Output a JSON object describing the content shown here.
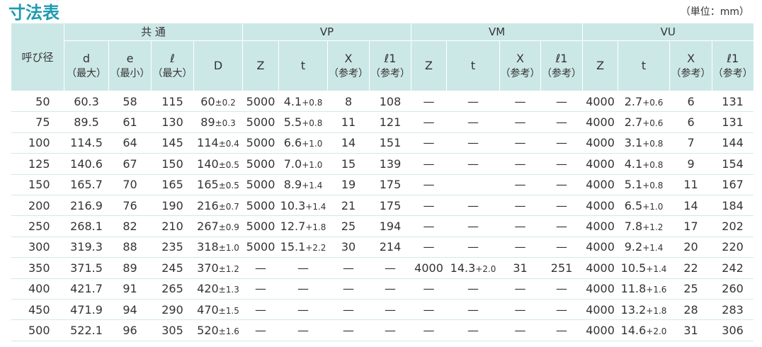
{
  "header": {
    "title": "寸法表",
    "unit": "（単位：mm）"
  },
  "table": {
    "group_headers": [
      "呼び径",
      "共 通",
      "VP",
      "VM",
      "VU"
    ],
    "column_headers": [
      [
        "d",
        "（最大）"
      ],
      [
        "e",
        "（最小）"
      ],
      [
        "ℓ",
        "（最大）"
      ],
      "D",
      "Z",
      "t",
      [
        "X",
        "（参考）"
      ],
      [
        "ℓ1",
        "（参考）"
      ],
      "Z",
      "t",
      [
        "X",
        "（参考）"
      ],
      [
        "ℓ1",
        "（参考）"
      ],
      "Z",
      "t",
      [
        "X",
        "（参考）"
      ],
      [
        "ℓ1",
        "（参考）"
      ]
    ],
    "rows": [
      [
        "50",
        "60.3",
        "58",
        "115",
        [
          "60",
          "±0.2"
        ],
        "5000",
        [
          "4.1",
          "+0.8"
        ],
        "8",
        "108",
        "—",
        "—",
        "—",
        "—",
        "4000",
        [
          "2.7",
          "+0.6"
        ],
        "6",
        "131"
      ],
      [
        "75",
        "89.5",
        "61",
        "130",
        [
          "89",
          "±0.3"
        ],
        "5000",
        [
          "5.5",
          "+0.8"
        ],
        "11",
        "121",
        "—",
        "—",
        "—",
        "—",
        "4000",
        [
          "2.7",
          "+0.6"
        ],
        "6",
        "131"
      ],
      [
        "100",
        "114.5",
        "64",
        "145",
        [
          "114",
          "±0.4"
        ],
        "5000",
        [
          "6.6",
          "+1.0"
        ],
        "14",
        "151",
        "—",
        "—",
        "—",
        "—",
        "4000",
        [
          "3.1",
          "+0.8"
        ],
        "7",
        "144"
      ],
      [
        "125",
        "140.6",
        "67",
        "150",
        [
          "140",
          "±0.5"
        ],
        "5000",
        [
          "7.0",
          "+1.0"
        ],
        "15",
        "139",
        "—",
        "—",
        "—",
        "—",
        "4000",
        [
          "4.1",
          "+0.8"
        ],
        "9",
        "154"
      ],
      [
        "150",
        "165.7",
        "70",
        "165",
        [
          "165",
          "±0.5"
        ],
        "5000",
        [
          "8.9",
          "+1.4"
        ],
        "19",
        "175",
        "—",
        null,
        "—",
        "—",
        "4000",
        [
          "5.1",
          "+0.8"
        ],
        "11",
        "167"
      ],
      [
        "200",
        "216.9",
        "76",
        "190",
        [
          "216",
          "±0.7"
        ],
        "5000",
        [
          "10.3",
          "+1.4"
        ],
        "21",
        "175",
        "—",
        "—",
        "—",
        "—",
        "4000",
        [
          "6.5",
          "+1.0"
        ],
        "14",
        "184"
      ],
      [
        "250",
        "268.1",
        "82",
        "210",
        [
          "267",
          "±0.9"
        ],
        "5000",
        [
          "12.7",
          "+1.8"
        ],
        "25",
        "194",
        "—",
        "—",
        "—",
        "—",
        "4000",
        [
          "7.8",
          "+1.2"
        ],
        "17",
        "202"
      ],
      [
        "300",
        "319.3",
        "88",
        "235",
        [
          "318",
          "±1.0"
        ],
        "5000",
        [
          "15.1",
          "+2.2"
        ],
        "30",
        "214",
        "—",
        "—",
        "—",
        "—",
        "4000",
        [
          "9.2",
          "+1.4"
        ],
        "20",
        "220"
      ],
      [
        "350",
        "371.5",
        "89",
        "245",
        [
          "370",
          "±1.2"
        ],
        "—",
        "—",
        "—",
        "—",
        "4000",
        [
          "14.3",
          "+2.0"
        ],
        "31",
        "251",
        "4000",
        [
          "10.5",
          "+1.4"
        ],
        "22",
        "242"
      ],
      [
        "400",
        "421.7",
        "91",
        "265",
        [
          "420",
          "±1.3"
        ],
        "—",
        "—",
        "—",
        "—",
        "—",
        "—",
        "—",
        "—",
        "4000",
        [
          "11.8",
          "+1.6"
        ],
        "25",
        "260"
      ],
      [
        "450",
        "471.9",
        "94",
        "290",
        [
          "470",
          "±1.5"
        ],
        "—",
        "—",
        "—",
        "—",
        "—",
        "—",
        "—",
        "—",
        "4000",
        [
          "13.2",
          "+1.8"
        ],
        "28",
        "283"
      ],
      [
        "500",
        "522.1",
        "96",
        "305",
        [
          "520",
          "±1.6"
        ],
        "—",
        "—",
        "—",
        "—",
        "—",
        "—",
        "—",
        "—",
        "4000",
        [
          "14.6",
          "+2.0"
        ],
        "31",
        "306"
      ]
    ]
  }
}
